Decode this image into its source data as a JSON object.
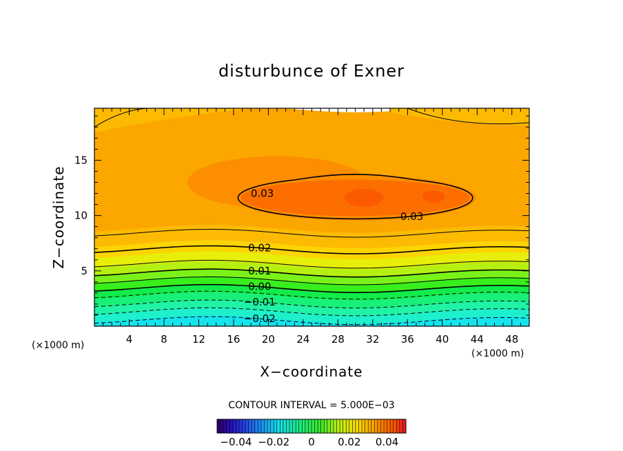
{
  "chart_data": {
    "type": "heatmap",
    "title": "disturbunce of Exner",
    "xlabel": "X−coordinate",
    "ylabel": "Z−coordinate",
    "x_unit": "(×1000 m)",
    "y_unit": "(×1000 m)",
    "xlim": [
      0,
      50
    ],
    "ylim": [
      0,
      19.7
    ],
    "x_ticks": [
      4,
      8,
      12,
      16,
      20,
      24,
      28,
      32,
      36,
      40,
      44,
      48
    ],
    "y_ticks": [
      5,
      10,
      15
    ],
    "contour_interval_text": "CONTOUR INTERVAL = 5.000E−03",
    "contour_interval": 0.005,
    "bands": [
      {
        "z_top": 0.6,
        "value": -0.025,
        "color": "#15e4ec"
      },
      {
        "z_top": 1.3,
        "value": -0.02,
        "color": "#1ef0cc"
      },
      {
        "z_top": 2.0,
        "value": -0.015,
        "color": "#20f3a6"
      },
      {
        "z_top": 2.7,
        "value": -0.01,
        "color": "#19f079"
      },
      {
        "z_top": 3.4,
        "value": -0.005,
        "color": "#12ec4a"
      },
      {
        "z_top": 4.1,
        "value": 0.0,
        "color": "#38ee1c"
      },
      {
        "z_top": 4.8,
        "value": 0.005,
        "color": "#7af21a"
      },
      {
        "z_top": 5.5,
        "value": 0.01,
        "color": "#b6f012"
      },
      {
        "z_top": 6.4,
        "value": 0.015,
        "color": "#e6ee0a"
      },
      {
        "z_top": 7.4,
        "value": 0.02,
        "color": "#fcd404"
      },
      {
        "z_top": 8.8,
        "value": 0.025,
        "color": "#fcbb02"
      },
      {
        "z_top": 19.7,
        "value": 0.03,
        "color": "#fca600"
      }
    ],
    "contour_lines": [
      {
        "value": -0.02,
        "z": 0.5,
        "dashed": true,
        "label": "−0.02"
      },
      {
        "value": -0.015,
        "z": 1.3,
        "dashed": true,
        "label": ""
      },
      {
        "value": -0.01,
        "z": 2.0,
        "dashed": true,
        "label": "−0.01"
      },
      {
        "value": -0.005,
        "z": 2.8,
        "dashed": true,
        "label": ""
      },
      {
        "value": 0.0,
        "z": 3.4,
        "dashed": false,
        "label": "0.00"
      },
      {
        "value": 0.005,
        "z": 4.1,
        "dashed": false,
        "label": ""
      },
      {
        "value": 0.01,
        "z": 4.8,
        "dashed": false,
        "label": "0.01"
      },
      {
        "value": 0.015,
        "z": 5.6,
        "dashed": false,
        "label": ""
      },
      {
        "value": 0.02,
        "z": 6.9,
        "dashed": false,
        "label": "0.02"
      },
      {
        "value": 0.025,
        "z": 8.4,
        "dashed": false,
        "label": ""
      }
    ],
    "maximum_contour": {
      "value": 0.03,
      "labels": [
        "0.03",
        "0.03"
      ],
      "x_range": [
        16.5,
        43.5
      ],
      "z_range": [
        9.7,
        13.5
      ]
    },
    "colorbar": {
      "tick_labels": [
        "−0.04",
        "−0.02",
        "0",
        "0.02",
        "0.04"
      ],
      "tick_values": [
        -0.04,
        -0.02,
        0,
        0.02,
        0.04
      ],
      "range": [
        -0.05,
        0.05
      ]
    }
  }
}
